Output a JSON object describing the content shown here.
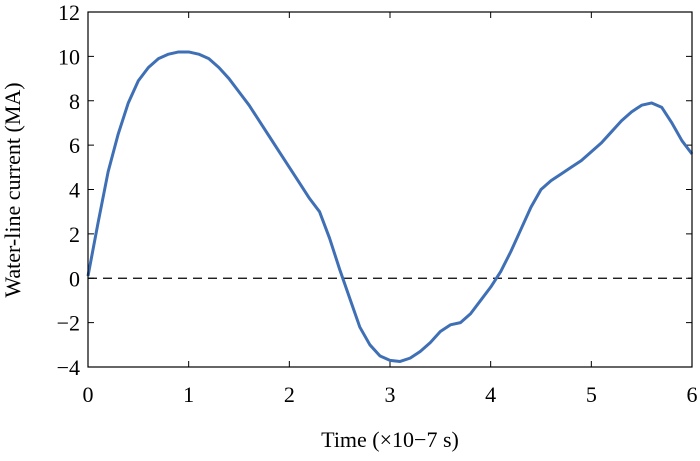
{
  "chart_data": {
    "type": "line",
    "xlabel": "Time (×10−7 s)",
    "ylabel": "Water-line current (MA)",
    "x": [
      0,
      0.1,
      0.2,
      0.3,
      0.4,
      0.5,
      0.6,
      0.7,
      0.8,
      0.9,
      1.0,
      1.1,
      1.2,
      1.3,
      1.4,
      1.5,
      1.6,
      1.7,
      1.8,
      1.9,
      2.0,
      2.1,
      2.2,
      2.3,
      2.4,
      2.5,
      2.6,
      2.7,
      2.8,
      2.9,
      3.0,
      3.1,
      3.2,
      3.3,
      3.4,
      3.5,
      3.6,
      3.7,
      3.8,
      3.9,
      4.0,
      4.1,
      4.2,
      4.3,
      4.4,
      4.5,
      4.6,
      4.7,
      4.8,
      4.9,
      5.0,
      5.1,
      5.2,
      5.3,
      5.4,
      5.5,
      5.6,
      5.7,
      5.8,
      5.9,
      6.0
    ],
    "series": [
      {
        "color": "#3f6fb5",
        "values": [
          0.1,
          2.5,
          4.8,
          6.5,
          7.9,
          8.9,
          9.5,
          9.9,
          10.1,
          10.2,
          10.2,
          10.1,
          9.9,
          9.5,
          9.0,
          8.4,
          7.8,
          7.1,
          6.4,
          5.7,
          5.0,
          4.3,
          3.6,
          3.0,
          1.8,
          0.4,
          -0.9,
          -2.2,
          -3.0,
          -3.5,
          -3.7,
          -3.75,
          -3.6,
          -3.3,
          -2.9,
          -2.4,
          -2.1,
          -2.0,
          -1.6,
          -1.0,
          -0.4,
          0.3,
          1.2,
          2.2,
          3.2,
          4.0,
          4.4,
          4.7,
          5.0,
          5.3,
          5.7,
          6.1,
          6.6,
          7.1,
          7.5,
          7.8,
          7.9,
          7.7,
          7.0,
          6.2,
          5.6
        ]
      }
    ],
    "hline": 0,
    "xlim": [
      0,
      6
    ],
    "xticks": [
      0,
      1,
      2,
      3,
      4,
      5,
      6
    ],
    "ylim": [
      -4,
      12
    ],
    "yticks": [
      {
        "value": -4,
        "label": "−4"
      },
      {
        "value": -2,
        "label": "−2"
      },
      0,
      2,
      4,
      6,
      8,
      10,
      12
    ]
  }
}
